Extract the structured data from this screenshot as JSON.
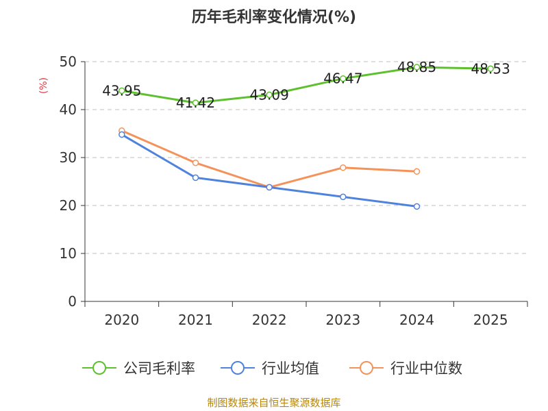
{
  "chart_data": {
    "type": "line",
    "title": "历年毛利率变化情况(%)",
    "ylabel": "(%)",
    "xlabel": "",
    "categories": [
      "2020",
      "2021",
      "2022",
      "2023",
      "2024",
      "2025"
    ],
    "ylim": [
      0,
      50
    ],
    "yticks": [
      "0",
      "10",
      "20",
      "30",
      "40",
      "50"
    ],
    "grid": "horizontal-dashed",
    "legend_position": "bottom",
    "series": [
      {
        "name": "公司毛利率",
        "color": "#5ec02e",
        "values": [
          43.95,
          41.42,
          43.09,
          46.47,
          48.85,
          48.53
        ],
        "labels": [
          "43.95",
          "41.42",
          "43.09",
          "46.47",
          "48.85",
          "48.53"
        ],
        "show_labels": true
      },
      {
        "name": "行业均值",
        "color": "#4f82dc",
        "values": [
          34.8,
          25.8,
          23.8,
          21.8,
          19.8,
          null
        ],
        "show_labels": false
      },
      {
        "name": "行业中位数",
        "color": "#f4925a",
        "values": [
          35.6,
          28.9,
          23.8,
          27.9,
          27.1,
          null
        ],
        "show_labels": false
      }
    ]
  },
  "source": "制图数据来自恒生聚源数据库"
}
